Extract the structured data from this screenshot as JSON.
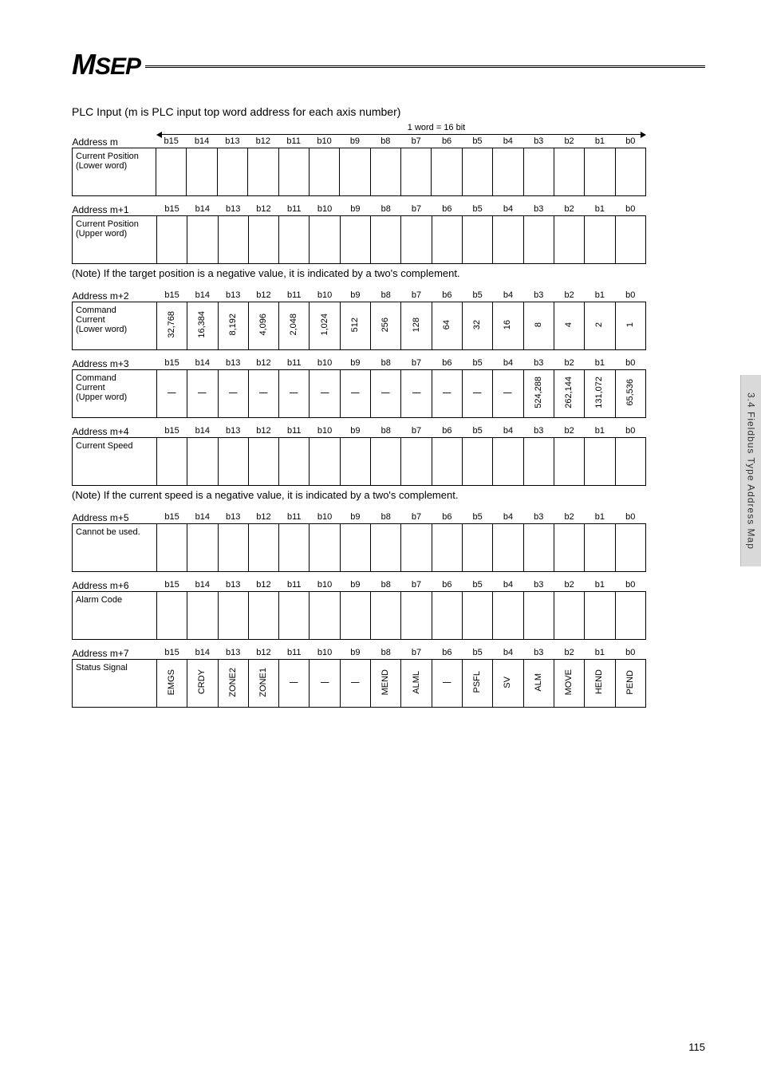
{
  "logo": {
    "text": "MSEP"
  },
  "section_title": "PLC Input (m is PLC input top word address for each axis number)",
  "word_label": "1 word = 16 bit",
  "bit_headers": [
    "b15",
    "b14",
    "b13",
    "b12",
    "b11",
    "b10",
    "b9",
    "b8",
    "b7",
    "b6",
    "b5",
    "b4",
    "b3",
    "b2",
    "b1",
    "b0"
  ],
  "tables": [
    {
      "addr": "Address m",
      "row_label": "Current Position\n(Lower word)",
      "cells": [
        "",
        "",
        "",
        "",
        "",
        "",
        "",
        "",
        "",
        "",
        "",
        "",
        "",
        "",
        "",
        ""
      ],
      "show_arrow": true,
      "height": "tall"
    },
    {
      "addr": "Address m+1",
      "row_label": "Current Position\n(Upper word)",
      "cells": [
        "",
        "",
        "",
        "",
        "",
        "",
        "",
        "",
        "",
        "",
        "",
        "",
        "",
        "",
        "",
        ""
      ],
      "height": "tall",
      "note": "(Note)  If the target position is a negative value, it is indicated by a two's complement."
    },
    {
      "addr": "Address m+2",
      "row_label": "Command\nCurrent\n(Lower word)",
      "cells": [
        "32,768",
        "16,384",
        "8,192",
        "4,096",
        "2,048",
        "1,024",
        "512",
        "256",
        "128",
        "64",
        "32",
        "16",
        "8",
        "4",
        "2",
        "1"
      ],
      "vertical": true
    },
    {
      "addr": "Address m+3",
      "row_label": "Command\nCurrent\n(Upper word)",
      "cells": [
        "|",
        "|",
        "|",
        "|",
        "|",
        "|",
        "|",
        "|",
        "|",
        "|",
        "|",
        "|",
        "524,288",
        "262,144",
        "131,072",
        "65,536"
      ],
      "vertical": true
    },
    {
      "addr": "Address m+4",
      "row_label": "Current Speed",
      "cells": [
        "",
        "",
        "",
        "",
        "",
        "",
        "",
        "",
        "",
        "",
        "",
        "",
        "",
        "",
        "",
        ""
      ],
      "height": "tall",
      "note": "(Note)  If the current speed is a negative value, it is indicated by a two's complement."
    },
    {
      "addr": "Address m+5",
      "row_label": "Cannot be used.",
      "cells": [
        "",
        "",
        "",
        "",
        "",
        "",
        "",
        "",
        "",
        "",
        "",
        "",
        "",
        "",
        "",
        ""
      ],
      "height": "tall"
    },
    {
      "addr": "Address m+6",
      "row_label": "Alarm Code",
      "cells": [
        "",
        "",
        "",
        "",
        "",
        "",
        "",
        "",
        "",
        "",
        "",
        "",
        "",
        "",
        "",
        ""
      ],
      "height": "tall"
    },
    {
      "addr": "Address m+7",
      "row_label": "Status Signal",
      "cells": [
        "EMGS",
        "CRDY",
        "ZONE2",
        "ZONE1",
        "|",
        "|",
        "|",
        "MEND",
        "ALML",
        "|",
        "PSFL",
        "SV",
        "ALM",
        "MOVE",
        "HEND",
        "PEND"
      ],
      "vertical": true
    }
  ],
  "side_tab": "3.4 Fieldbus Type Address Map",
  "page_number": "115"
}
